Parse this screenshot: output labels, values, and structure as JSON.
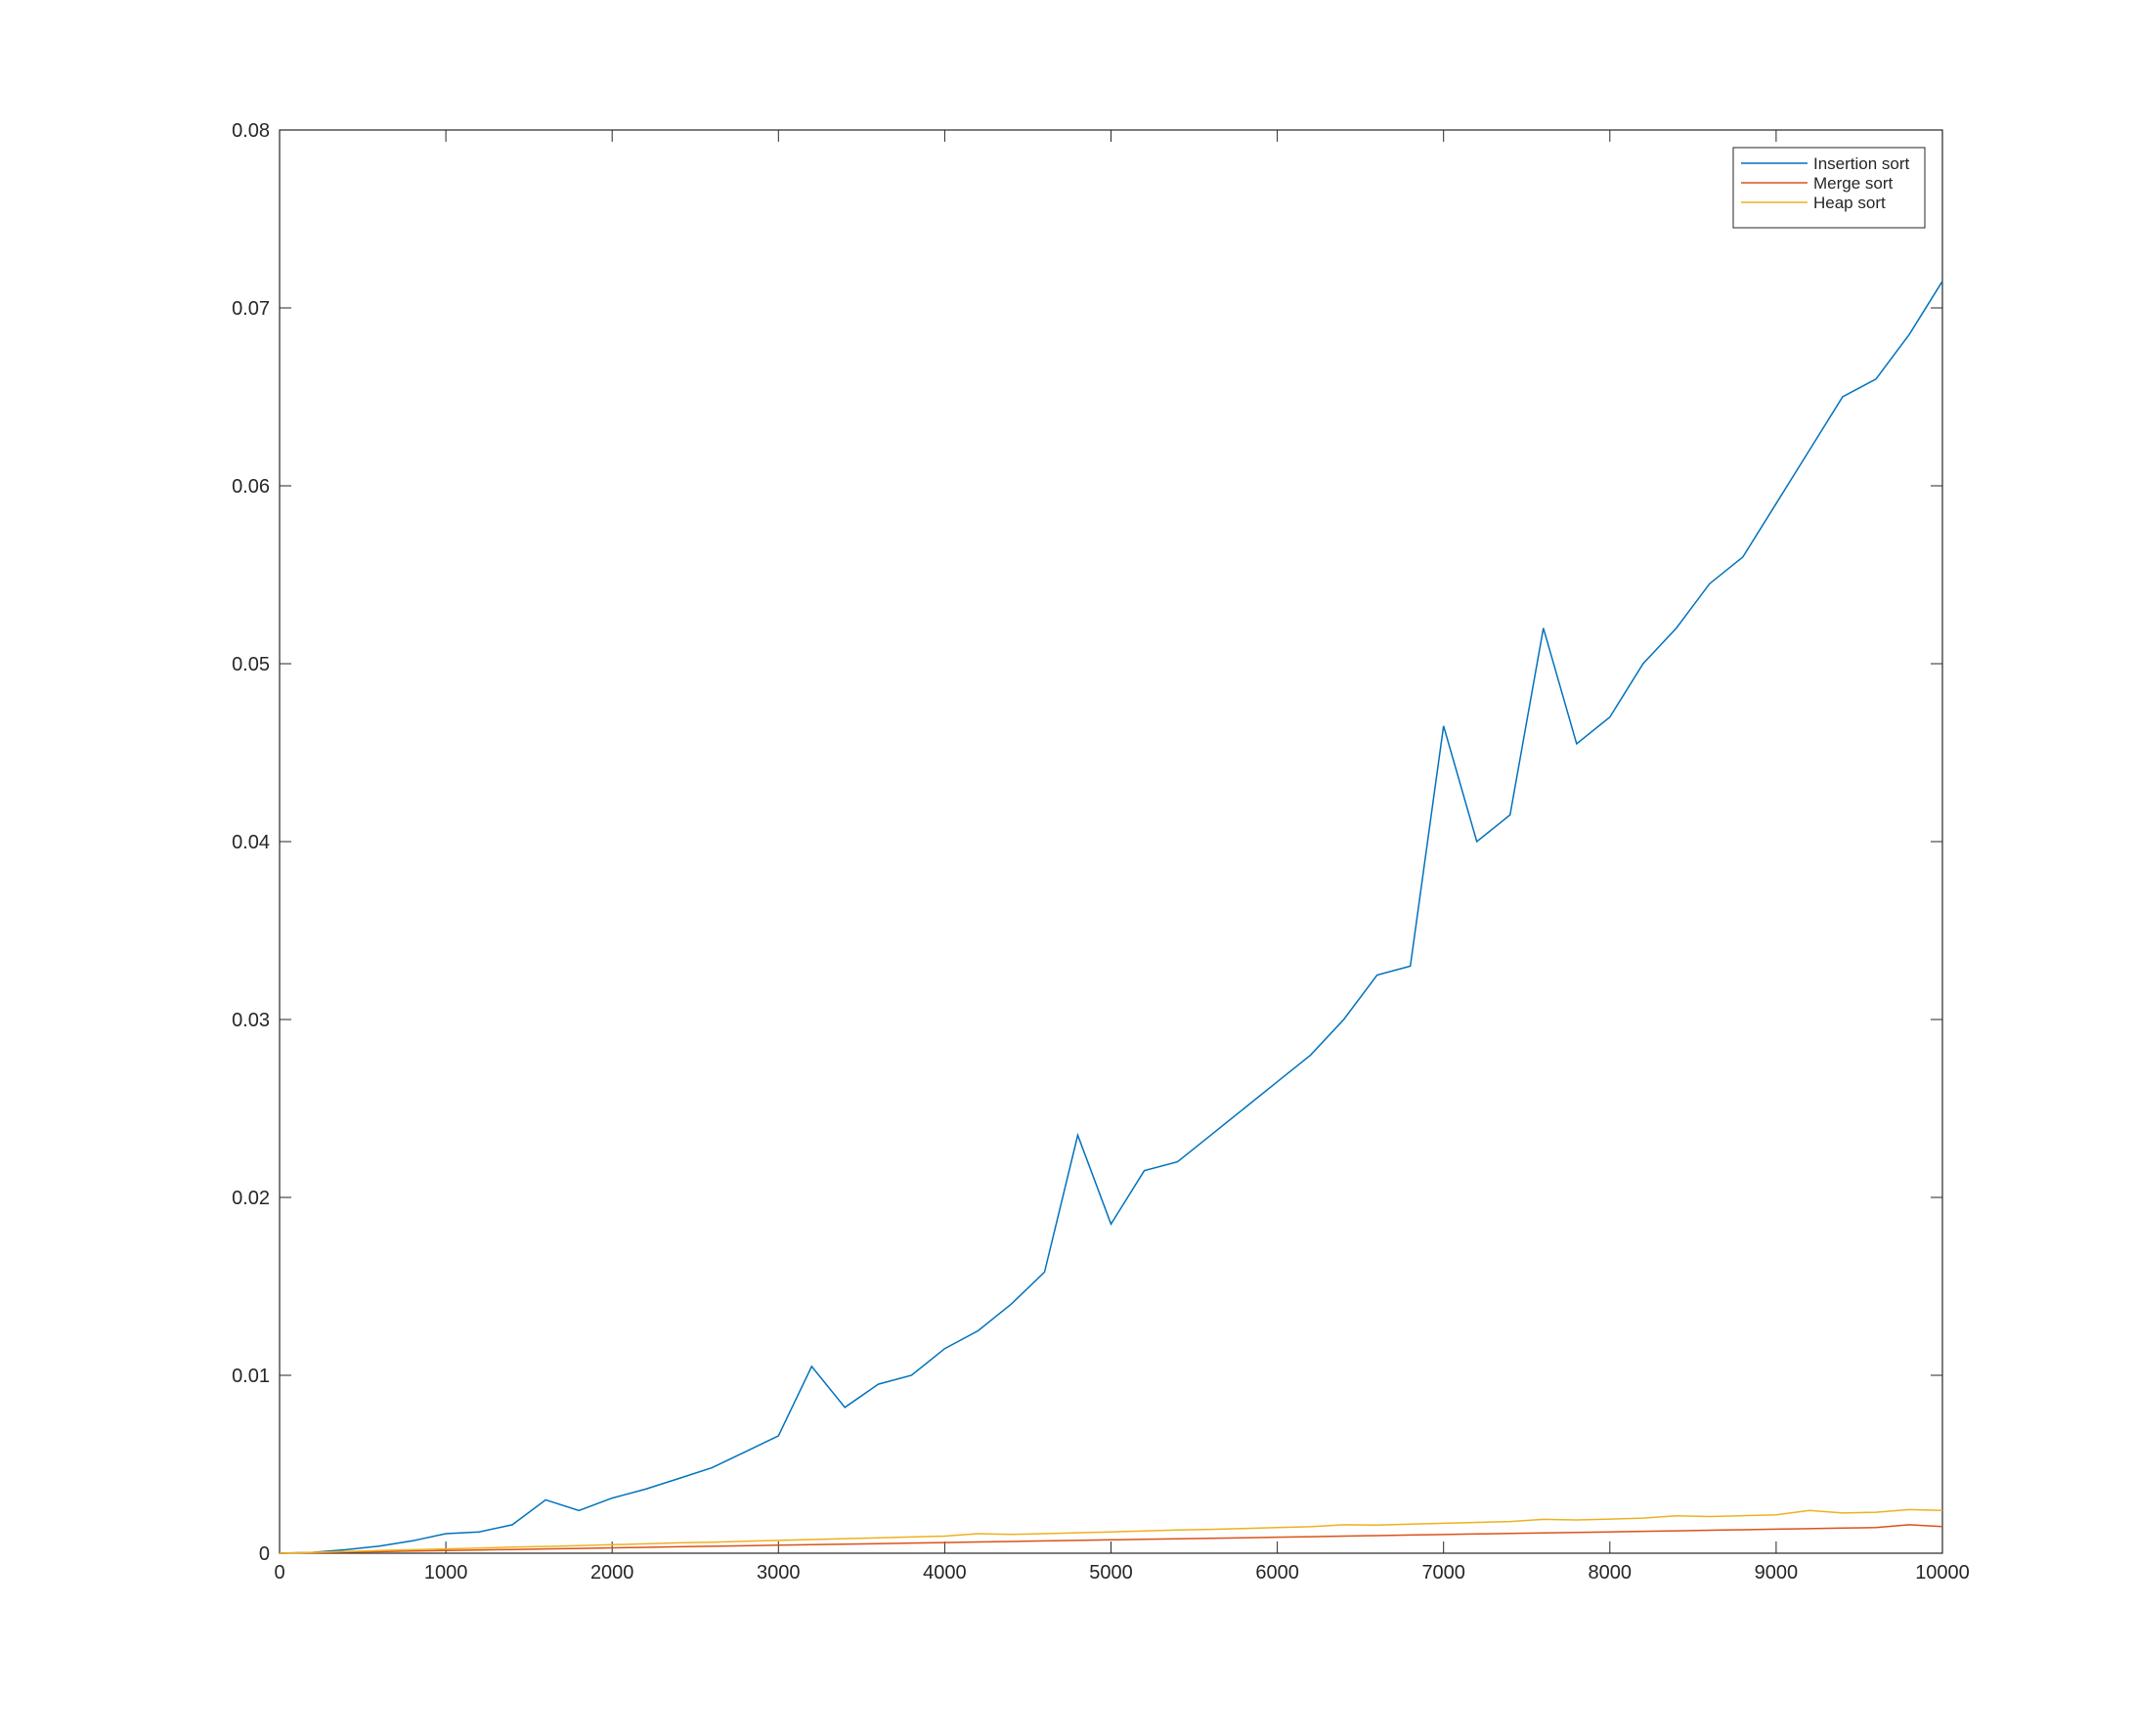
{
  "chart_data": {
    "type": "line",
    "x": [
      0,
      200,
      400,
      600,
      800,
      1000,
      1200,
      1400,
      1600,
      1800,
      2000,
      2200,
      2400,
      2600,
      2800,
      3000,
      3200,
      3400,
      3600,
      3800,
      4000,
      4200,
      4400,
      4600,
      4800,
      5000,
      5200,
      5400,
      5600,
      5800,
      6000,
      6200,
      6400,
      6600,
      6800,
      7000,
      7200,
      7400,
      7600,
      7800,
      8000,
      8200,
      8400,
      8600,
      8800,
      9000,
      9200,
      9400,
      9600,
      9800,
      10000
    ],
    "series": [
      {
        "name": "Insertion sort",
        "color": "#0072bd",
        "values": [
          0,
          5e-05,
          0.0002,
          0.0004,
          0.0007,
          0.0011,
          0.0012,
          0.0016,
          0.003,
          0.0024,
          0.0031,
          0.0036,
          0.0042,
          0.0048,
          0.0057,
          0.0066,
          0.0105,
          0.0082,
          0.0095,
          0.01,
          0.0115,
          0.0125,
          0.014,
          0.0158,
          0.0235,
          0.0185,
          0.0215,
          0.022,
          0.0235,
          0.025,
          0.0265,
          0.028,
          0.03,
          0.0325,
          0.033,
          0.0465,
          0.04,
          0.0415,
          0.052,
          0.0455,
          0.047,
          0.05,
          0.052,
          0.0545,
          0.056,
          0.059,
          0.062,
          0.065,
          0.066,
          0.0685,
          0.0715
        ]
      },
      {
        "name": "Merge sort",
        "color": "#d95319",
        "values": [
          0,
          3e-05,
          6e-05,
          9e-05,
          0.00012,
          0.00015,
          0.00018,
          0.00021,
          0.00024,
          0.00027,
          0.0003,
          0.00033,
          0.00036,
          0.00039,
          0.00042,
          0.00045,
          0.00048,
          0.00051,
          0.00054,
          0.00057,
          0.0006,
          0.00063,
          0.00066,
          0.00069,
          0.00072,
          0.00075,
          0.00078,
          0.00081,
          0.00084,
          0.00087,
          0.0009,
          0.00093,
          0.00096,
          0.00099,
          0.00102,
          0.00105,
          0.00108,
          0.00111,
          0.00114,
          0.00117,
          0.0012,
          0.00123,
          0.00126,
          0.00129,
          0.00132,
          0.00135,
          0.00138,
          0.00141,
          0.00144,
          0.0016,
          0.0015
        ]
      },
      {
        "name": "Heap sort",
        "color": "#edb120",
        "values": [
          0,
          5e-05,
          0.0001,
          0.00015,
          0.0002,
          0.00024,
          0.00029,
          0.00034,
          0.00038,
          0.00043,
          0.00048,
          0.00053,
          0.00058,
          0.00062,
          0.00067,
          0.00072,
          0.00077,
          0.00082,
          0.00086,
          0.00091,
          0.00096,
          0.0011,
          0.00106,
          0.0011,
          0.00115,
          0.0012,
          0.00125,
          0.0013,
          0.00134,
          0.00139,
          0.00144,
          0.00149,
          0.0016,
          0.00158,
          0.00163,
          0.00168,
          0.00173,
          0.00178,
          0.0019,
          0.00187,
          0.00192,
          0.00197,
          0.0021,
          0.00206,
          0.00211,
          0.00216,
          0.0024,
          0.00226,
          0.0023,
          0.00245,
          0.0024
        ]
      }
    ],
    "xlim": [
      0,
      10000
    ],
    "xticks": [
      0,
      1000,
      2000,
      3000,
      4000,
      5000,
      6000,
      7000,
      8000,
      9000,
      10000
    ],
    "ylim": [
      0,
      0.08
    ],
    "yticks": [
      0,
      0.01,
      0.02,
      0.03,
      0.04,
      0.05,
      0.06,
      0.07,
      0.08
    ],
    "legend": "upper right"
  }
}
